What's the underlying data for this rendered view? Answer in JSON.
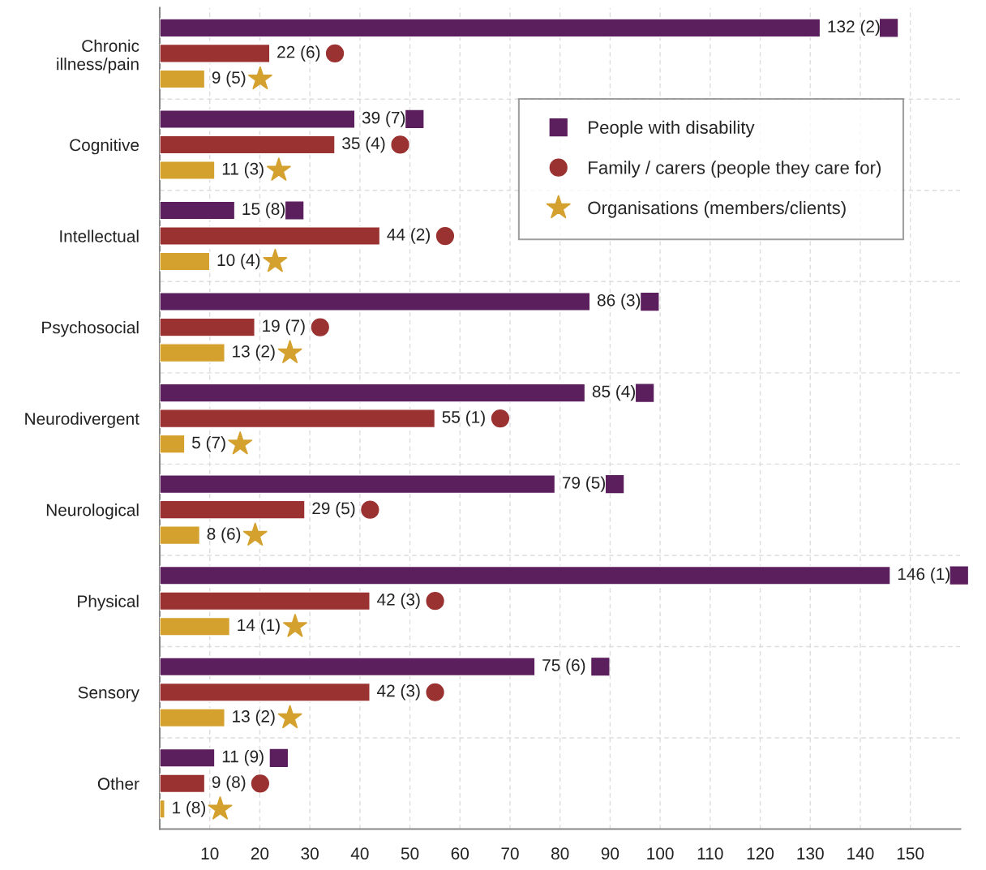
{
  "chart_data": {
    "type": "bar",
    "orientation": "horizontal",
    "categories": [
      "Chronic\nillness/pain",
      "Cognitive",
      "Intellectual",
      "Psychosocial",
      "Neurodivergent",
      "Neurological",
      "Physical",
      "Sensory",
      "Other"
    ],
    "series": [
      {
        "name": "People with disability",
        "color": "#5c1f5e",
        "marker": "square",
        "values": [
          132,
          39,
          15,
          86,
          85,
          79,
          146,
          75,
          11
        ],
        "value_labels": [
          "132 (2)",
          "39 (7)",
          "15 (8)",
          "86 (3)",
          "85 (4)",
          "79 (5)",
          "146 (1)",
          "75 (6)",
          "11 (9)"
        ]
      },
      {
        "name": "Family / carers (people they care for)",
        "color": "#9b3232",
        "marker": "circle",
        "values": [
          22,
          35,
          44,
          19,
          55,
          29,
          42,
          42,
          9
        ],
        "value_labels": [
          "22 (6)",
          "35 (4)",
          "44 (2)",
          "19 (7)",
          "55 (1)",
          "29 (5)",
          "42 (3)",
          "42 (3)",
          "9 (8)"
        ]
      },
      {
        "name": "Organisations (members/clients)",
        "color": "#d4a12f",
        "marker": "star",
        "values": [
          9,
          11,
          10,
          13,
          5,
          8,
          14,
          13,
          1
        ],
        "value_labels": [
          "9 (5)",
          "11 (3)",
          "10 (4)",
          "13 (2)",
          "5 (7)",
          "8 (6)",
          "14 (1)",
          "13 (2)",
          "1 (8)"
        ]
      }
    ],
    "xlim": [
      0,
      160
    ],
    "xticks": [
      10,
      20,
      30,
      40,
      50,
      60,
      70,
      80,
      90,
      100,
      110,
      120,
      130,
      140,
      150
    ],
    "grid": true,
    "legend": "top right"
  }
}
